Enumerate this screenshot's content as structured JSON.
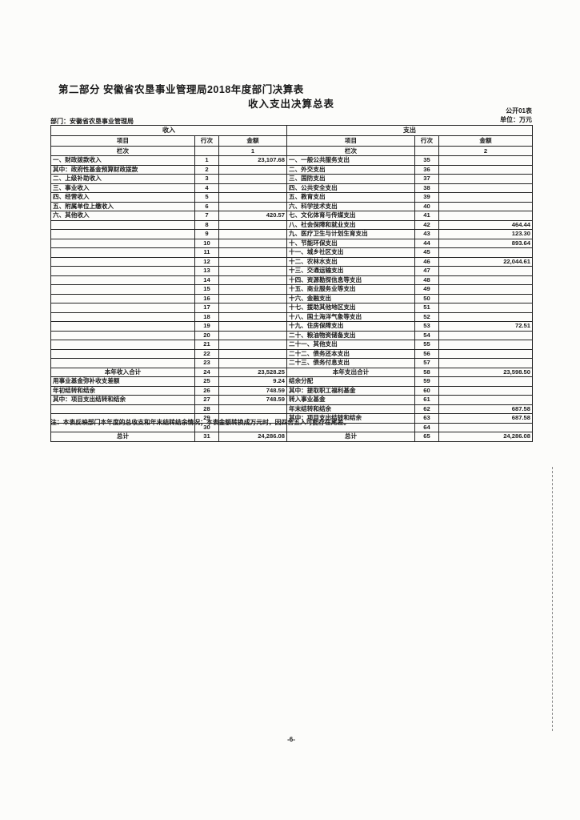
{
  "colors": {
    "ink": "#1a1a1a",
    "paper": "#fcfcfa",
    "border": "#222222"
  },
  "page": {
    "section_title": "第二部分  安徽省农垦事业管理局2018年度部门决算表",
    "table_title": "收入支出决算总表",
    "form_code": "公开01表",
    "unit_label": "单位：万元",
    "department_label": "部门：安徽省农垦事业管理局",
    "note": "注：本表反映部门本年度的总收支和年末结转结余情况；本表金额转换成万元时，因四舍五入可能存在尾差。",
    "page_number": "-6-"
  },
  "table": {
    "income_header": "收入",
    "expense_header": "支出",
    "col_headers": {
      "item": "项目",
      "row_no": "行次",
      "amount": "金额"
    },
    "lanci_label": "栏次",
    "income_lanci": "1",
    "expense_lanci": "2",
    "rows": [
      {
        "income_item": "一、财政拨款收入",
        "income_row": "1",
        "income_amount": "23,107.68",
        "income_class": "",
        "expense_item": "一、一般公共服务支出",
        "expense_row": "35",
        "expense_amount": "",
        "expense_class": ""
      },
      {
        "income_item": "其中：政府性基金预算财政拨款",
        "income_row": "2",
        "income_amount": "",
        "income_class": "ind1",
        "expense_item": "二、外交支出",
        "expense_row": "36",
        "expense_amount": "",
        "expense_class": ""
      },
      {
        "income_item": "二、上级补助收入",
        "income_row": "3",
        "income_amount": "",
        "income_class": "",
        "expense_item": "三、国防支出",
        "expense_row": "37",
        "expense_amount": "",
        "expense_class": ""
      },
      {
        "income_item": "三、事业收入",
        "income_row": "4",
        "income_amount": "",
        "income_class": "",
        "expense_item": "四、公共安全支出",
        "expense_row": "38",
        "expense_amount": "",
        "expense_class": ""
      },
      {
        "income_item": "四、经营收入",
        "income_row": "5",
        "income_amount": "",
        "income_class": "",
        "expense_item": "五、教育支出",
        "expense_row": "39",
        "expense_amount": "",
        "expense_class": ""
      },
      {
        "income_item": "五、附属单位上缴收入",
        "income_row": "6",
        "income_amount": "",
        "income_class": "",
        "expense_item": "六、科学技术支出",
        "expense_row": "40",
        "expense_amount": "",
        "expense_class": ""
      },
      {
        "income_item": "六、其他收入",
        "income_row": "7",
        "income_amount": "420.57",
        "income_class": "",
        "expense_item": "七、文化体育与传媒支出",
        "expense_row": "41",
        "expense_amount": "",
        "expense_class": ""
      },
      {
        "income_item": "",
        "income_row": "8",
        "income_amount": "",
        "income_class": "",
        "expense_item": "八、社会保障和就业支出",
        "expense_row": "42",
        "expense_amount": "464.44",
        "expense_class": ""
      },
      {
        "income_item": "",
        "income_row": "9",
        "income_amount": "",
        "income_class": "",
        "expense_item": "九、医疗卫生与计划生育支出",
        "expense_row": "43",
        "expense_amount": "123.30",
        "expense_class": ""
      },
      {
        "income_item": "",
        "income_row": "10",
        "income_amount": "",
        "income_class": "",
        "expense_item": "十、节能环保支出",
        "expense_row": "44",
        "expense_amount": "893.64",
        "expense_class": ""
      },
      {
        "income_item": "",
        "income_row": "11",
        "income_amount": "",
        "income_class": "",
        "expense_item": "十一、城乡社区支出",
        "expense_row": "45",
        "expense_amount": "",
        "expense_class": ""
      },
      {
        "income_item": "",
        "income_row": "12",
        "income_amount": "",
        "income_class": "",
        "expense_item": "十二、农林水支出",
        "expense_row": "46",
        "expense_amount": "22,044.61",
        "expense_class": ""
      },
      {
        "income_item": "",
        "income_row": "13",
        "income_amount": "",
        "income_class": "",
        "expense_item": "十三、交通运输支出",
        "expense_row": "47",
        "expense_amount": "",
        "expense_class": ""
      },
      {
        "income_item": "",
        "income_row": "14",
        "income_amount": "",
        "income_class": "",
        "expense_item": "十四、资源勘探信息等支出",
        "expense_row": "48",
        "expense_amount": "",
        "expense_class": ""
      },
      {
        "income_item": "",
        "income_row": "15",
        "income_amount": "",
        "income_class": "",
        "expense_item": "十五、商业服务业等支出",
        "expense_row": "49",
        "expense_amount": "",
        "expense_class": ""
      },
      {
        "income_item": "",
        "income_row": "16",
        "income_amount": "",
        "income_class": "",
        "expense_item": "十六、金融支出",
        "expense_row": "50",
        "expense_amount": "",
        "expense_class": ""
      },
      {
        "income_item": "",
        "income_row": "17",
        "income_amount": "",
        "income_class": "",
        "expense_item": "十七、援助其他地区支出",
        "expense_row": "51",
        "expense_amount": "",
        "expense_class": ""
      },
      {
        "income_item": "",
        "income_row": "18",
        "income_amount": "",
        "income_class": "",
        "expense_item": "十八、国土海洋气象等支出",
        "expense_row": "52",
        "expense_amount": "",
        "expense_class": ""
      },
      {
        "income_item": "",
        "income_row": "19",
        "income_amount": "",
        "income_class": "",
        "expense_item": "十九、住房保障支出",
        "expense_row": "53",
        "expense_amount": "72.51",
        "expense_class": ""
      },
      {
        "income_item": "",
        "income_row": "20",
        "income_amount": "",
        "income_class": "",
        "expense_item": "二十、粮油物资储备支出",
        "expense_row": "54",
        "expense_amount": "",
        "expense_class": ""
      },
      {
        "income_item": "",
        "income_row": "21",
        "income_amount": "",
        "income_class": "",
        "expense_item": "二十一、其他支出",
        "expense_row": "55",
        "expense_amount": "",
        "expense_class": ""
      },
      {
        "income_item": "",
        "income_row": "22",
        "income_amount": "",
        "income_class": "",
        "expense_item": "二十二、债务还本支出",
        "expense_row": "56",
        "expense_amount": "",
        "expense_class": ""
      },
      {
        "income_item": "",
        "income_row": "23",
        "income_amount": "",
        "income_class": "",
        "expense_item": "二十三、债务付息支出",
        "expense_row": "57",
        "expense_amount": "",
        "expense_class": ""
      },
      {
        "income_item": "本年收入合计",
        "income_row": "24",
        "income_amount": "23,528.25",
        "income_class": "c",
        "expense_item": "本年支出合计",
        "expense_row": "58",
        "expense_amount": "23,598.50",
        "expense_class": "c"
      },
      {
        "income_item": "用事业基金弥补收支差额",
        "income_row": "25",
        "income_amount": "9.24",
        "income_class": "",
        "expense_item": "结余分配",
        "expense_row": "59",
        "expense_amount": "",
        "expense_class": ""
      },
      {
        "income_item": "年初结转和结余",
        "income_row": "26",
        "income_amount": "748.59",
        "income_class": "",
        "expense_item": "其中：提取职工福利基金",
        "expense_row": "60",
        "expense_amount": "",
        "expense_class": "ind1"
      },
      {
        "income_item": "其中：项目支出结转和结余",
        "income_row": "27",
        "income_amount": "748.59",
        "income_class": "ind1",
        "expense_item": "转入事业基金",
        "expense_row": "61",
        "expense_amount": "",
        "expense_class": "ind2"
      },
      {
        "income_item": "",
        "income_row": "28",
        "income_amount": "",
        "income_class": "",
        "expense_item": "年末结转和结余",
        "expense_row": "62",
        "expense_amount": "687.58",
        "expense_class": ""
      },
      {
        "income_item": "",
        "income_row": "29",
        "income_amount": "",
        "income_class": "",
        "expense_item": "其中：项目支出结转和结余",
        "expense_row": "63",
        "expense_amount": "687.58",
        "expense_class": "ind1"
      },
      {
        "income_item": "",
        "income_row": "30",
        "income_amount": "",
        "income_class": "",
        "expense_item": "",
        "expense_row": "64",
        "expense_amount": "",
        "expense_class": ""
      },
      {
        "income_item": "总计",
        "income_row": "31",
        "income_amount": "24,286.08",
        "income_class": "c",
        "expense_item": "总计",
        "expense_row": "65",
        "expense_amount": "24,286.08",
        "expense_class": "c"
      }
    ]
  }
}
